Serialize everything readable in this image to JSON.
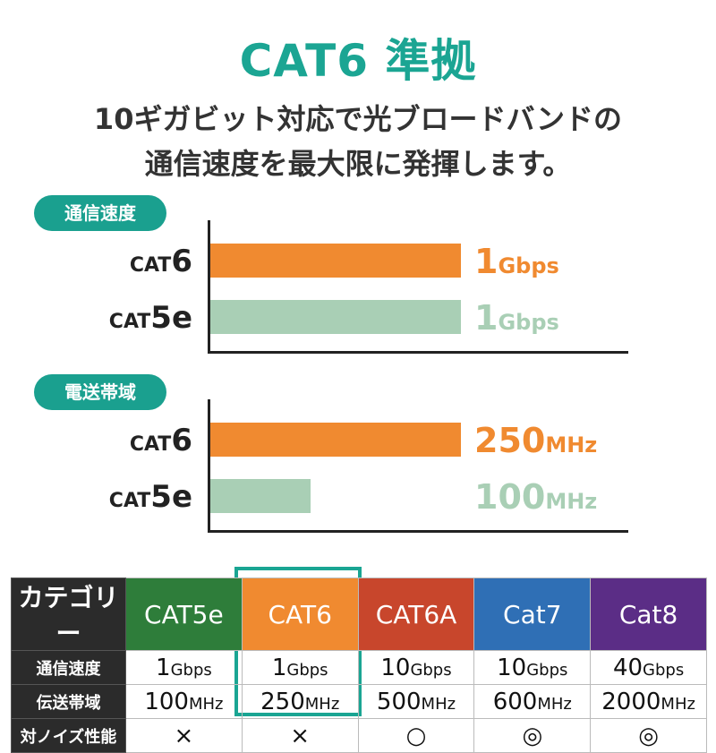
{
  "title": "CAT6 準拠",
  "subtitle": [
    "10ギガビット対応で光ブロードバンドの",
    "通信速度を最大限に発揮します。"
  ],
  "colors": {
    "accent": "#1aa08f",
    "cat6": "#f08a30",
    "cat5e": "#a9cfb5"
  },
  "chart_data": [
    {
      "type": "bar",
      "title": "通信速度",
      "categories": [
        "CAT6",
        "CAT5e"
      ],
      "values": [
        1,
        1
      ],
      "unit": "Gbps",
      "value_labels": [
        {
          "num": "1",
          "unit": "Gbps"
        },
        {
          "num": "1",
          "unit": "Gbps"
        }
      ],
      "category_labels": [
        {
          "pre": "CAT",
          "post": "6"
        },
        {
          "pre": "CAT",
          "post": "5e"
        }
      ],
      "max": 1
    },
    {
      "type": "bar",
      "title": "電送帯域",
      "categories": [
        "CAT6",
        "CAT5e"
      ],
      "values": [
        250,
        100
      ],
      "unit": "MHz",
      "value_labels": [
        {
          "num": "250",
          "unit": "MHz"
        },
        {
          "num": "100",
          "unit": "MHz"
        }
      ],
      "category_labels": [
        {
          "pre": "CAT",
          "post": "6"
        },
        {
          "pre": "CAT",
          "post": "5e"
        }
      ],
      "max": 250
    }
  ],
  "table": {
    "header": [
      "カテゴリー",
      "CAT5e",
      "CAT6",
      "CAT6A",
      "Cat7",
      "Cat8"
    ],
    "header_colors": [
      "#2b2b2b",
      "#2e7d3a",
      "#f08a30",
      "#c8462c",
      "#2f6fb5",
      "#5b2d86"
    ],
    "rows": [
      {
        "label": "通信速度",
        "cells": [
          [
            "1",
            "Gbps"
          ],
          [
            "1",
            "Gbps"
          ],
          [
            "10",
            "Gbps"
          ],
          [
            "10",
            "Gbps"
          ],
          [
            "40",
            "Gbps"
          ]
        ]
      },
      {
        "label": "伝送帯域",
        "cells": [
          [
            "100",
            "MHz"
          ],
          [
            "250",
            "MHz"
          ],
          [
            "500",
            "MHz"
          ],
          [
            "600",
            "MHz"
          ],
          [
            "2000",
            "MHz"
          ]
        ]
      },
      {
        "label": "対ノイズ性能",
        "cells": [
          [
            "×",
            ""
          ],
          [
            "×",
            ""
          ],
          [
            "○",
            ""
          ],
          [
            "◎",
            ""
          ],
          [
            "◎",
            ""
          ]
        ]
      }
    ]
  }
}
